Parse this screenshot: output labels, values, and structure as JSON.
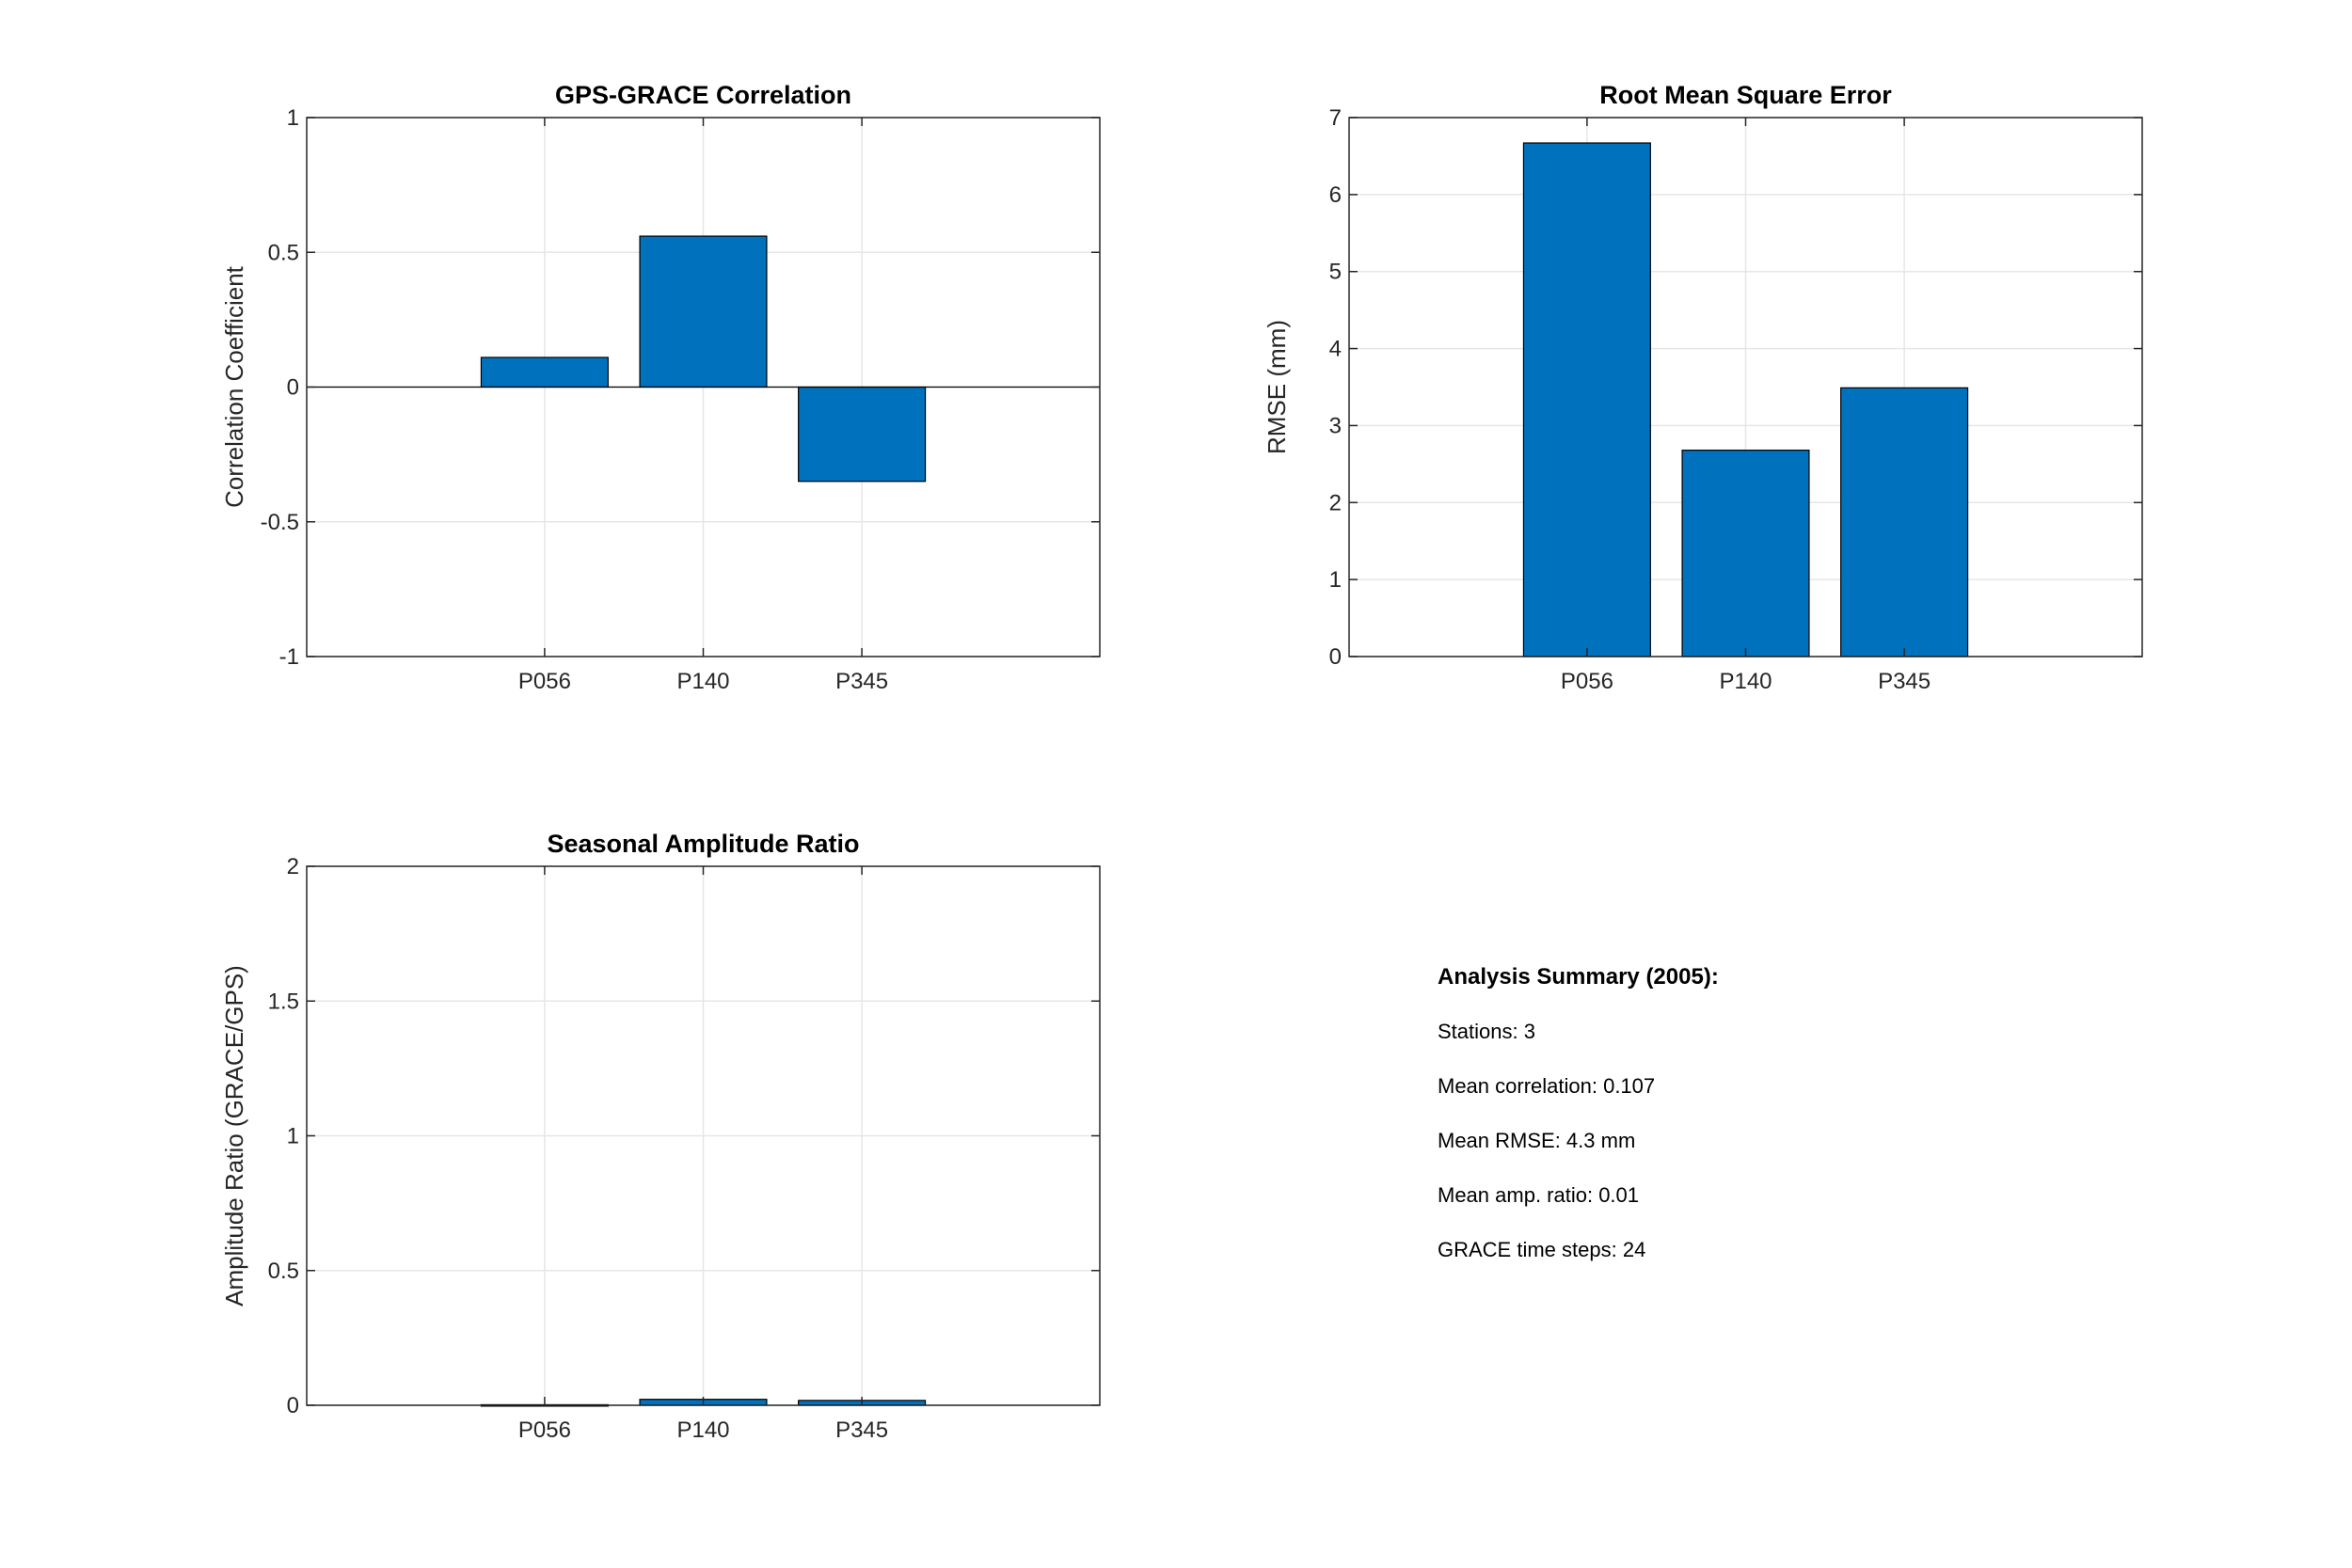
{
  "chart_data": [
    {
      "type": "bar",
      "title": "GPS-GRACE Correlation",
      "xlabel": "",
      "ylabel": "Correlation Coefficient",
      "categories": [
        "P056",
        "P140",
        "P345"
      ],
      "values": [
        0.11,
        0.56,
        -0.35
      ],
      "ylim": [
        -1,
        1
      ],
      "yticks": [
        -1,
        -0.5,
        0,
        0.5,
        1
      ],
      "ytick_labels": [
        "-1",
        "-0.5",
        "0",
        "0.5",
        "1"
      ],
      "grid": true,
      "baseline": true,
      "color": "#0072BD"
    },
    {
      "type": "bar",
      "title": "Root Mean Square Error",
      "xlabel": "",
      "ylabel": "RMSE (mm)",
      "categories": [
        "P056",
        "P140",
        "P345"
      ],
      "values": [
        6.67,
        2.68,
        3.49
      ],
      "ylim": [
        0,
        7
      ],
      "yticks": [
        0,
        1,
        2,
        3,
        4,
        5,
        6,
        7
      ],
      "ytick_labels": [
        "0",
        "1",
        "2",
        "3",
        "4",
        "5",
        "6",
        "7"
      ],
      "grid": true,
      "baseline": false,
      "color": "#0072BD"
    },
    {
      "type": "bar",
      "title": "Seasonal Amplitude Ratio",
      "xlabel": "",
      "ylabel": "Amplitude Ratio (GRACE/GPS)",
      "categories": [
        "P056",
        "P140",
        "P345"
      ],
      "values": [
        0.002,
        0.022,
        0.018
      ],
      "ylim": [
        0,
        2
      ],
      "yticks": [
        0,
        0.5,
        1,
        1.5,
        2
      ],
      "ytick_labels": [
        "0",
        "0.5",
        "1",
        "1.5",
        "2"
      ],
      "grid": true,
      "baseline": false,
      "color": "#0072BD"
    }
  ],
  "summary": {
    "title": "Analysis Summary (2005):",
    "stations": "Stations: 3",
    "mean_correlation": "Mean correlation: 0.107",
    "mean_rmse": "Mean RMSE: 4.3 mm",
    "mean_amp_ratio": "Mean amp. ratio: 0.01",
    "grace_steps": "GRACE time steps: 24"
  }
}
